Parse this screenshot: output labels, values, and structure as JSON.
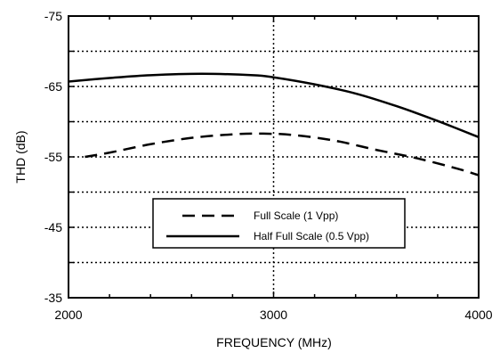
{
  "chart_data": {
    "type": "line",
    "xlabel": "FREQUENCY (MHz)",
    "ylabel": "THD (dB)",
    "xlim": [
      2000,
      4000
    ],
    "ylim": [
      -35,
      -75
    ],
    "xticks": [
      2000,
      3000,
      4000
    ],
    "xtick_labels": [
      "2000",
      "3000",
      "4000"
    ],
    "yticks": [
      -75,
      -65,
      -55,
      -45,
      -35
    ],
    "ytick_labels": [
      "-75",
      "-65",
      "-55",
      "-45",
      "-35"
    ],
    "grid": true,
    "legend_position": "center",
    "series": [
      {
        "name": "Full Scale (1 Vpp)",
        "style": "dashed",
        "x": [
          2080,
          2200,
          2400,
          2600,
          2800,
          2950,
          3100,
          3300,
          3500,
          3700,
          3900,
          4000
        ],
        "y": [
          -55.0,
          -55.6,
          -56.8,
          -57.7,
          -58.2,
          -58.3,
          -58.1,
          -57.3,
          -56.0,
          -54.8,
          -53.3,
          -52.4
        ]
      },
      {
        "name": "Half Full Scale (0.5 Vpp)",
        "style": "solid",
        "x": [
          2000,
          2200,
          2400,
          2650,
          2900,
          3000,
          3200,
          3400,
          3600,
          3800,
          4000
        ],
        "y": [
          -65.7,
          -66.2,
          -66.6,
          -66.8,
          -66.6,
          -66.3,
          -65.3,
          -64.0,
          -62.2,
          -60.1,
          -57.8
        ]
      }
    ],
    "colors": {
      "axis": "#000000",
      "grid": "#000000",
      "line": "#000000"
    }
  }
}
